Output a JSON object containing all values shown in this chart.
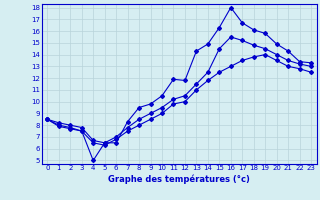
{
  "xlabel": "Graphe des températures (°c)",
  "x": [
    0,
    1,
    2,
    3,
    4,
    5,
    6,
    7,
    8,
    9,
    10,
    11,
    12,
    13,
    14,
    15,
    16,
    17,
    18,
    19,
    20,
    21,
    22,
    23
  ],
  "temp_main": [
    8.5,
    7.9,
    7.7,
    7.5,
    5.0,
    6.5,
    6.5,
    8.3,
    9.5,
    9.8,
    10.5,
    11.9,
    11.8,
    14.3,
    14.9,
    16.3,
    18.0,
    16.7,
    16.1,
    15.8,
    14.9,
    14.3,
    13.4,
    13.3
  ],
  "temp_line2": [
    8.5,
    8.2,
    8.0,
    7.8,
    6.7,
    6.5,
    7.0,
    7.8,
    8.5,
    9.0,
    9.5,
    10.2,
    10.5,
    11.5,
    12.5,
    14.5,
    15.5,
    15.2,
    14.8,
    14.5,
    14.0,
    13.5,
    13.2,
    13.0
  ],
  "temp_line3": [
    8.5,
    8.0,
    7.8,
    7.5,
    6.5,
    6.3,
    6.8,
    7.5,
    8.0,
    8.5,
    9.0,
    9.8,
    10.0,
    11.0,
    11.8,
    12.5,
    13.0,
    13.5,
    13.8,
    14.0,
    13.5,
    13.0,
    12.8,
    12.5
  ],
  "line_color": "#0000cc",
  "bg_color": "#d6eef2",
  "grid_color": "#b8d4da",
  "ylim": [
    5,
    18
  ],
  "xlim": [
    -0.5,
    23.5
  ],
  "yticks": [
    5,
    6,
    7,
    8,
    9,
    10,
    11,
    12,
    13,
    14,
    15,
    16,
    17,
    18
  ],
  "xticks": [
    0,
    1,
    2,
    3,
    4,
    5,
    6,
    7,
    8,
    9,
    10,
    11,
    12,
    13,
    14,
    15,
    16,
    17,
    18,
    19,
    20,
    21,
    22,
    23
  ]
}
